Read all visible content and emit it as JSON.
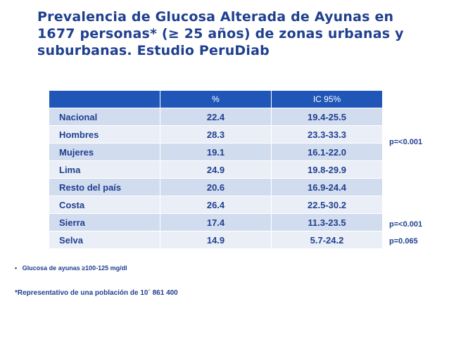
{
  "title": {
    "line1": "Prevalencia de Glucosa Alterada de Ayunas en",
    "line2": "1677 personas* (≥ 25 años) de zonas urbanas y",
    "line3": "suburbanas. Estudio PeruDiab"
  },
  "table": {
    "headers": [
      "",
      "%",
      "IC 95%"
    ],
    "rows": [
      {
        "label": "Nacional",
        "pct": "22.4",
        "ci": "19.4-25.5"
      },
      {
        "label": "Hombres",
        "pct": "28.3",
        "ci": "23.3-33.3"
      },
      {
        "label": "Mujeres",
        "pct": "19.1",
        "ci": "16.1-22.0"
      },
      {
        "label": "Lima",
        "pct": "24.9",
        "ci": "19.8-29.9"
      },
      {
        "label": "Resto del país",
        "pct": "20.6",
        "ci": "16.9-24.4"
      },
      {
        "label": "Costa",
        "pct": "26.4",
        "ci": "22.5-30.2"
      },
      {
        "label": "Sierra",
        "pct": "17.4",
        "ci": "11.3-23.5"
      },
      {
        "label": "Selva",
        "pct": "14.9",
        "ci": "5.7-24.2"
      }
    ]
  },
  "pvalues": [
    "p=<0.001",
    "p=<0.001",
    "p=0.065"
  ],
  "notes": {
    "bullet": "•",
    "glucose": "Glucosa  de ayunas  ≥100-125 mg/dl",
    "representative": "*Representativo de una población de 10´ 861 400"
  }
}
